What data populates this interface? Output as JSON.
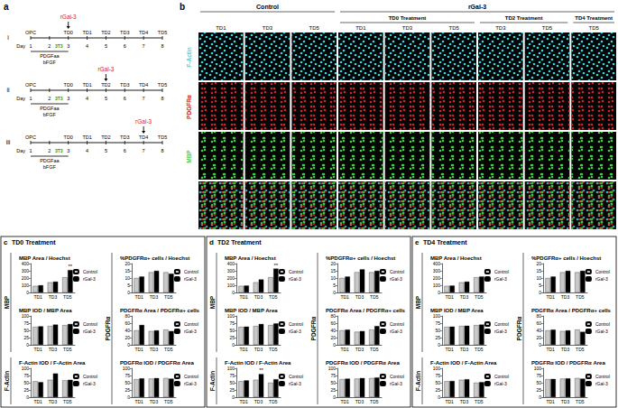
{
  "figure": {
    "panel_a": {
      "label": "a",
      "timelines": [
        {
          "label": "i",
          "treatment_at": "TD0"
        },
        {
          "label": "ii",
          "treatment_at": "TD2"
        },
        {
          "label": "iii",
          "treatment_at": "TD4"
        }
      ],
      "day_label": "Day",
      "days": [
        1,
        2,
        3,
        4,
        5,
        6,
        7,
        8
      ],
      "stages": [
        "OPC",
        null,
        "TD0",
        "TD1",
        "TD2",
        "TD3",
        "TD4",
        "TD5"
      ],
      "media": [
        "PDGFaa",
        "bFGF"
      ],
      "coculture": "3T3",
      "treatment": "rGal-3"
    },
    "panel_b": {
      "label": "b",
      "groups": [
        {
          "title": "Control",
          "subgroups": [
            {
              "title": null,
              "days": [
                "TD1",
                "TD3",
                "TD5"
              ]
            }
          ]
        },
        {
          "title": "rGal-3",
          "subgroups": [
            {
              "title": "TD0 Treatment",
              "days": [
                "TD1",
                "TD3",
                "TD5"
              ]
            },
            {
              "title": "TD2 Treatment",
              "days": [
                "TD3",
                "TD5"
              ]
            },
            {
              "title": "TD4 Treatment",
              "days": [
                "TD5"
              ]
            }
          ]
        }
      ],
      "rows": [
        {
          "label": "F-Actin",
          "color": "#3fd4e0"
        },
        {
          "label": "PDGFRα",
          "color": "#d0242b"
        },
        {
          "label": "MBP",
          "color": "#3fcf3f"
        },
        {
          "label": null,
          "color": null
        }
      ]
    },
    "panels": [
      {
        "label": "c",
        "title": "TD0 Treatment",
        "sections": [
          {
            "label": "MBP",
            "charts": [
              0,
              1
            ]
          },
          {
            "label": "F-Actin",
            "charts": [
              2
            ]
          },
          {
            "label": "PDGFRα",
            "charts": [
              3,
              4,
              5
            ]
          }
        ]
      },
      {
        "label": "d",
        "title": "TD2 Treatment",
        "sections": [
          {
            "label": "MBP",
            "charts": [
              0,
              1
            ]
          },
          {
            "label": "F-Actin",
            "charts": [
              2
            ]
          },
          {
            "label": "PDGFRα",
            "charts": [
              3,
              4,
              5
            ]
          }
        ]
      },
      {
        "label": "e",
        "title": "TD4 Treatment",
        "sections": [
          {
            "label": "MBP",
            "charts": [
              0,
              1
            ]
          },
          {
            "label": "F-Actin",
            "charts": [
              2
            ]
          },
          {
            "label": "PDGFRα",
            "charts": [
              3,
              4,
              5
            ]
          }
        ]
      }
    ]
  },
  "chart_data": [
    {
      "type": "bar",
      "title": "MBP Area / Hoechst",
      "categories": [
        "TD1",
        "TD3",
        "TD5"
      ],
      "series": [
        {
          "name": "Control",
          "color": "#c8c8c8",
          "values": [
            90,
            140,
            210
          ]
        },
        {
          "name": "rGal-3",
          "color": "#000000",
          "values": [
            100,
            150,
            310
          ]
        }
      ],
      "ylim": [
        0,
        400
      ],
      "yticks": [
        0,
        100,
        200,
        300,
        400
      ],
      "grid": false,
      "legend": "right",
      "annotations": [
        {
          "series": "rGal-3",
          "category": "TD5",
          "text": "**"
        }
      ]
    },
    {
      "type": "bar",
      "title": "MBP IOD / MBP Area",
      "categories": [
        "TD1",
        "TD3",
        "TD5"
      ],
      "series": [
        {
          "name": "Control",
          "color": "#c8c8c8",
          "values": [
            62,
            65,
            68
          ]
        },
        {
          "name": "rGal-3",
          "color": "#000000",
          "values": [
            64,
            70,
            72
          ]
        }
      ],
      "ylim": [
        0,
        100
      ],
      "yticks": [
        0,
        25,
        50,
        75,
        100
      ],
      "grid": false,
      "legend": "right"
    },
    {
      "type": "bar",
      "title": "F-Actin IOD / F-Actin Area",
      "categories": [
        "TD1",
        "TD3",
        "TD5"
      ],
      "series": [
        {
          "name": "Control",
          "color": "#c8c8c8",
          "values": [
            55,
            60,
            58
          ]
        },
        {
          "name": "rGal-3",
          "color": "#000000",
          "values": [
            52,
            82,
            60
          ]
        }
      ],
      "ylim": [
        0,
        100
      ],
      "yticks": [
        0,
        25,
        50,
        75,
        100
      ],
      "grid": false,
      "legend": "right"
    },
    {
      "type": "bar",
      "title": "%PDGFRα+ cells / Hoechst",
      "categories": [
        "TD1",
        "TD3",
        "TD5"
      ],
      "series": [
        {
          "name": "Control",
          "color": "#c8c8c8",
          "values": [
            10,
            14,
            14
          ]
        },
        {
          "name": "rGal-3",
          "color": "#000000",
          "values": [
            11,
            15,
            13
          ]
        }
      ],
      "ylim": [
        0,
        20
      ],
      "yticks": [
        0,
        5,
        10,
        15,
        20
      ],
      "grid": false,
      "legend": "right"
    },
    {
      "type": "bar",
      "title": "PDGFRα Area / PDGFRα+ cells",
      "categories": [
        "TD1",
        "TD3",
        "TD5"
      ],
      "series": [
        {
          "name": "Control",
          "color": "#c8c8c8",
          "values": [
            40,
            38,
            42
          ]
        },
        {
          "name": "rGal-3",
          "color": "#000000",
          "values": [
            55,
            40,
            38
          ]
        }
      ],
      "ylim": [
        0,
        80
      ],
      "yticks": [
        0,
        20,
        40,
        60,
        80
      ],
      "grid": false,
      "legend": "right"
    },
    {
      "type": "bar",
      "title": "PDGFRα IOD / PDGFRα Area",
      "categories": [
        "TD1",
        "TD3",
        "TD5"
      ],
      "series": [
        {
          "name": "Control",
          "color": "#c8c8c8",
          "values": [
            62,
            64,
            66
          ]
        },
        {
          "name": "rGal-3",
          "color": "#000000",
          "values": [
            65,
            66,
            64
          ]
        }
      ],
      "ylim": [
        0,
        100
      ],
      "yticks": [
        0,
        25,
        50,
        75,
        100
      ],
      "grid": false,
      "legend": "right"
    },
    {
      "type": "bar",
      "title": "MBP Area / Hoechst",
      "categories": [
        "TD1",
        "TD3",
        "TD5"
      ],
      "series": [
        {
          "name": "Control",
          "color": "#c8c8c8",
          "values": [
            90,
            140,
            210
          ]
        },
        {
          "name": "rGal-3",
          "color": "#000000",
          "values": [
            95,
            180,
            330
          ]
        }
      ],
      "ylim": [
        0,
        400
      ],
      "yticks": [
        0,
        100,
        200,
        300,
        400
      ],
      "grid": false,
      "legend": "right",
      "annotations": [
        {
          "series": "rGal-3",
          "category": "TD5",
          "text": "**"
        }
      ]
    },
    {
      "type": "bar",
      "title": "MBP IOD / MBP Area",
      "categories": [
        "TD1",
        "TD3",
        "TD5"
      ],
      "series": [
        {
          "name": "Control",
          "color": "#c8c8c8",
          "values": [
            62,
            65,
            68
          ]
        },
        {
          "name": "rGal-3",
          "color": "#000000",
          "values": [
            63,
            72,
            74
          ]
        }
      ],
      "ylim": [
        0,
        100
      ],
      "yticks": [
        0,
        25,
        50,
        75,
        100
      ],
      "grid": false,
      "legend": "right"
    },
    {
      "type": "bar",
      "title": "F-Actin IOD / F-Actin Area",
      "categories": [
        "TD1",
        "TD3",
        "TD5"
      ],
      "series": [
        {
          "name": "Control",
          "color": "#c8c8c8",
          "values": [
            55,
            60,
            50
          ]
        },
        {
          "name": "rGal-3",
          "color": "#000000",
          "values": [
            58,
            80,
            62
          ]
        }
      ],
      "ylim": [
        0,
        100
      ],
      "yticks": [
        0,
        25,
        50,
        75,
        100
      ],
      "grid": false,
      "legend": "right",
      "annotations": [
        {
          "series": "rGal-3",
          "category": "TD3",
          "text": "**"
        }
      ]
    },
    {
      "type": "bar",
      "title": "%PDGFRα+ cells / Hoechst",
      "categories": [
        "TD1",
        "TD3",
        "TD5"
      ],
      "series": [
        {
          "name": "Control",
          "color": "#c8c8c8",
          "values": [
            10,
            14,
            14
          ]
        },
        {
          "name": "rGal-3",
          "color": "#000000",
          "values": [
            11,
            16,
            15
          ]
        }
      ],
      "ylim": [
        0,
        20
      ],
      "yticks": [
        0,
        5,
        10,
        15,
        20
      ],
      "grid": false,
      "legend": "right"
    },
    {
      "type": "bar",
      "title": "PDGFRα Area / PDGFRα+ cells",
      "categories": [
        "TD1",
        "TD3",
        "TD5"
      ],
      "series": [
        {
          "name": "Control",
          "color": "#c8c8c8",
          "values": [
            40,
            36,
            42
          ]
        },
        {
          "name": "rGal-3",
          "color": "#000000",
          "values": [
            42,
            38,
            52
          ]
        }
      ],
      "ylim": [
        0,
        80
      ],
      "yticks": [
        0,
        20,
        40,
        60,
        80
      ],
      "grid": false,
      "legend": "right"
    },
    {
      "type": "bar",
      "title": "PDGFRα IOD / PDGFRα Area",
      "categories": [
        "TD1",
        "TD3",
        "TD5"
      ],
      "series": [
        {
          "name": "Control",
          "color": "#c8c8c8",
          "values": [
            62,
            64,
            66
          ]
        },
        {
          "name": "rGal-3",
          "color": "#000000",
          "values": [
            64,
            66,
            68
          ]
        }
      ],
      "ylim": [
        0,
        100
      ],
      "yticks": [
        0,
        25,
        50,
        75,
        100
      ],
      "grid": false,
      "legend": "right"
    },
    {
      "type": "bar",
      "title": "MBP Area / Hoechst",
      "categories": [
        "TD1",
        "TD3",
        "TD5"
      ],
      "series": [
        {
          "name": "Control",
          "color": "#c8c8c8",
          "values": [
            90,
            140,
            210
          ]
        },
        {
          "name": "rGal-3",
          "color": "#000000",
          "values": [
            95,
            150,
            220
          ]
        }
      ],
      "ylim": [
        0,
        400
      ],
      "yticks": [
        0,
        100,
        200,
        300,
        400
      ],
      "grid": false,
      "legend": "right"
    },
    {
      "type": "bar",
      "title": "MBP IOD / MBP Area",
      "categories": [
        "TD1",
        "TD3",
        "TD5"
      ],
      "series": [
        {
          "name": "Control",
          "color": "#c8c8c8",
          "values": [
            62,
            65,
            68
          ]
        },
        {
          "name": "rGal-3",
          "color": "#000000",
          "values": [
            63,
            66,
            70
          ]
        }
      ],
      "ylim": [
        0,
        100
      ],
      "yticks": [
        0,
        25,
        50,
        75,
        100
      ],
      "grid": false,
      "legend": "right"
    },
    {
      "type": "bar",
      "title": "F-Actin IOD / F-Actin Area",
      "categories": [
        "TD1",
        "TD3",
        "TD5"
      ],
      "series": [
        {
          "name": "Control",
          "color": "#c8c8c8",
          "values": [
            55,
            60,
            50
          ]
        },
        {
          "name": "rGal-3",
          "color": "#000000",
          "values": [
            56,
            62,
            52
          ]
        }
      ],
      "ylim": [
        0,
        100
      ],
      "yticks": [
        0,
        25,
        50,
        75,
        100
      ],
      "grid": false,
      "legend": "right"
    },
    {
      "type": "bar",
      "title": "%PDGFRα+ cells / Hoechst",
      "categories": [
        "TD1",
        "TD3",
        "TD5"
      ],
      "series": [
        {
          "name": "Control",
          "color": "#c8c8c8",
          "values": [
            10,
            14,
            14
          ]
        },
        {
          "name": "rGal-3",
          "color": "#000000",
          "values": [
            11,
            15,
            15
          ]
        }
      ],
      "ylim": [
        0,
        20
      ],
      "yticks": [
        0,
        5,
        10,
        15,
        20
      ],
      "grid": false,
      "legend": "right"
    },
    {
      "type": "bar",
      "title": "PDGFRα Area / PDGFRα+ cells",
      "categories": [
        "TD1",
        "TD3",
        "TD5"
      ],
      "series": [
        {
          "name": "Control",
          "color": "#c8c8c8",
          "values": [
            40,
            38,
            42
          ]
        },
        {
          "name": "rGal-3",
          "color": "#000000",
          "values": [
            42,
            40,
            36
          ]
        }
      ],
      "ylim": [
        0,
        80
      ],
      "yticks": [
        0,
        20,
        40,
        60,
        80
      ],
      "grid": false,
      "legend": "right"
    },
    {
      "type": "bar",
      "title": "PDGFRα IOD / PDGFRα Area",
      "categories": [
        "TD1",
        "TD3",
        "TD5"
      ],
      "series": [
        {
          "name": "Control",
          "color": "#c8c8c8",
          "values": [
            62,
            64,
            66
          ]
        },
        {
          "name": "rGal-3",
          "color": "#000000",
          "values": [
            63,
            65,
            64
          ]
        }
      ],
      "ylim": [
        0,
        100
      ],
      "yticks": [
        0,
        25,
        50,
        75,
        100
      ],
      "grid": false,
      "legend": "right"
    }
  ]
}
